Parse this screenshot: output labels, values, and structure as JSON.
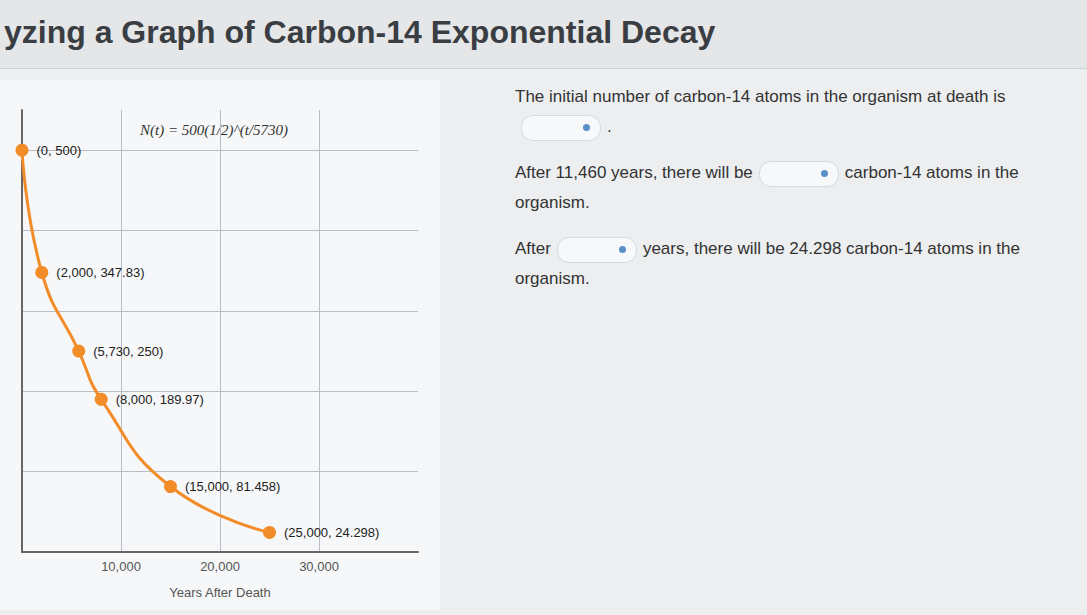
{
  "header": {
    "title": "yzing a Graph of Carbon-14 Exponential Decay"
  },
  "panel": {
    "sentences": [
      [
        "The initial number of carbon-14 atoms in the organism at death is",
        null,
        "."
      ],
      [
        "After 11,460 years, there will be",
        null,
        "carbon-14 atoms in the organism."
      ],
      [
        "After",
        null,
        "years, there will be 24.298 carbon-14 atoms in the organism."
      ]
    ]
  },
  "chart_data": {
    "type": "line",
    "x": [
      0,
      2000,
      5730,
      8000,
      15000,
      25000
    ],
    "values": [
      500,
      347.83,
      250,
      189.97,
      81.458,
      24.298
    ],
    "value_labels": [
      "(0, 500)",
      "(2,000, 347.83)",
      "(5,730, 250)",
      "(8,000, 189.97)",
      "(15,000, 81.458)",
      "(25,000, 24.298)"
    ],
    "data_labels": true,
    "color": "#f28c28",
    "marker": "circle",
    "annotation": "N(t) = 500(1/2)^(t/5730)",
    "xlabel": "Years After Death",
    "xlim": [
      0,
      40000
    ],
    "xticks": [
      {
        "value": 10000,
        "label": "10,000"
      },
      {
        "value": 20000,
        "label": "20,000"
      },
      {
        "value": 30000,
        "label": "30,000"
      }
    ],
    "ylim": [
      0,
      550
    ],
    "yticks": [
      0,
      100,
      200,
      300,
      400,
      500
    ],
    "grid": true,
    "tick_labels": "x"
  }
}
